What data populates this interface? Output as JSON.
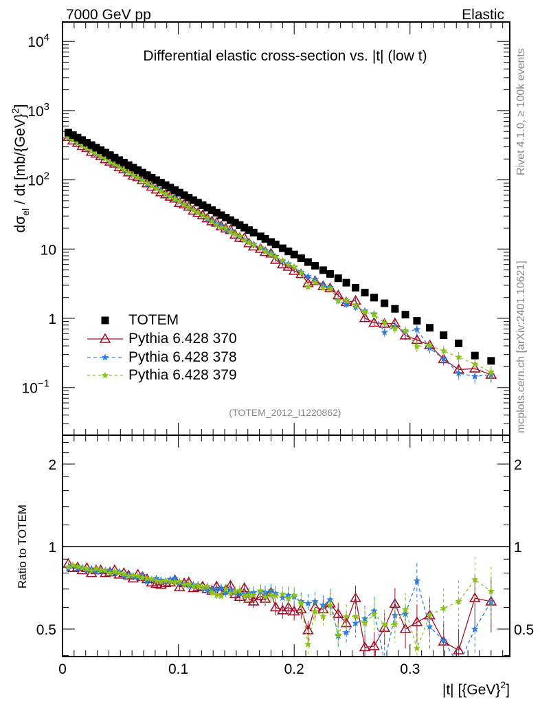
{
  "header": {
    "left": "7000 GeV pp",
    "right": "Elastic"
  },
  "side_texts": {
    "rivet": "Rivet 4.1.0, ≥ 100k events",
    "mcplots": "mcplots.cern.ch [arXiv:2401.10621]"
  },
  "analysis_tag": "(TOTEM_2012_I1220862)",
  "chart_data": [
    {
      "type": "scatter",
      "title": "Differential elastic cross-section vs. |t| (low t)",
      "ylabel": {
        "main": "dσ",
        "sub": "el",
        "mid": " / dt [mb/{GeV}",
        "sup": "2",
        "end": "]"
      },
      "xlabel": {
        "main": "|t| [{GeV}",
        "sup": "2",
        "end": "]"
      },
      "yscale": "log",
      "ylim": [
        0.0206,
        19000
      ],
      "xlim": [
        0,
        0.386
      ],
      "yticks": [
        {
          "v": 10000,
          "base": "10",
          "exp": "4"
        },
        {
          "v": 1000,
          "base": "10",
          "exp": "3"
        },
        {
          "v": 100,
          "base": "10",
          "exp": "2"
        },
        {
          "v": 10,
          "base": "10",
          "exp": ""
        },
        {
          "v": 1,
          "base": "1",
          "exp": ""
        },
        {
          "v": 0.1,
          "base": "10",
          "exp": "−1"
        }
      ],
      "xticks": [
        "0",
        "0.1",
        "0.2",
        "0.3"
      ],
      "x": [
        0.005,
        0.009,
        0.013,
        0.017,
        0.021,
        0.025,
        0.029,
        0.033,
        0.037,
        0.041,
        0.045,
        0.049,
        0.053,
        0.057,
        0.061,
        0.065,
        0.069,
        0.073,
        0.077,
        0.081,
        0.085,
        0.089,
        0.093,
        0.097,
        0.101,
        0.105,
        0.109,
        0.113,
        0.117,
        0.121,
        0.125,
        0.129,
        0.133,
        0.137,
        0.141,
        0.145,
        0.149,
        0.153,
        0.157,
        0.161,
        0.165,
        0.171,
        0.175,
        0.18,
        0.184,
        0.19,
        0.195,
        0.2,
        0.206,
        0.212,
        0.218,
        0.225,
        0.231,
        0.238,
        0.245,
        0.253,
        0.261,
        0.269,
        0.278,
        0.287,
        0.296,
        0.306,
        0.317,
        0.329,
        0.342,
        0.356,
        0.37
      ],
      "totem": [
        481,
        442.6,
        407.3,
        374.8,
        344.9,
        317.4,
        292.1,
        268.8,
        247.3,
        227.6,
        209.4,
        192.7,
        177.3,
        163.2,
        150.2,
        138.2,
        127.1,
        117.0,
        107.7,
        99.1,
        91.2,
        83.9,
        77.2,
        71.0,
        65.4,
        60.1,
        55.3,
        50.9,
        46.9,
        43.1,
        39.7,
        36.5,
        33.6,
        30.9,
        28.5,
        26.2,
        24.1,
        22.2,
        20.4,
        18.8,
        17.3,
        15.26,
        14.04,
        12.65,
        11.65,
        10.28,
        9.26,
        8.35,
        7.37,
        6.5,
        5.74,
        4.96,
        4.38,
        3.79,
        3.27,
        2.77,
        2.35,
        1.99,
        1.65,
        1.37,
        1.13,
        0.92,
        0.73,
        0.57,
        0.435,
        0.29,
        0.243
      ],
      "legend": {
        "placement": "middle-left",
        "entries": [
          "TOTEM",
          "Pythia 6.428 370",
          "Pythia 6.428 378",
          "Pythia 6.428 379"
        ]
      },
      "colors": {
        "totem": "#000000",
        "p370": "#a0102a",
        "p378": "#2a7de1",
        "p379": "#8cc31a"
      }
    },
    {
      "type": "scatter",
      "ylabel": "Ratio to TOTEM",
      "yscale": "log",
      "ylim": [
        0.397,
        2.55
      ],
      "yticks": [
        "2",
        "1",
        "0.5"
      ],
      "series": [
        {
          "name": "Pythia 6.428 370",
          "ratio": [
            0.865,
            0.835,
            0.84,
            0.82,
            0.835,
            0.8,
            0.82,
            0.82,
            0.8,
            0.805,
            0.82,
            0.79,
            0.8,
            0.785,
            0.765,
            0.79,
            0.775,
            0.76,
            0.74,
            0.73,
            0.725,
            0.735,
            0.74,
            0.755,
            0.71,
            0.735,
            0.74,
            0.705,
            0.71,
            0.715,
            0.7,
            0.69,
            0.715,
            0.69,
            0.695,
            0.72,
            0.67,
            0.655,
            0.705,
            0.645,
            0.63,
            0.66,
            0.645,
            0.68,
            0.6,
            0.585,
            0.6,
            0.58,
            0.59,
            0.495,
            0.6,
            0.59,
            0.62,
            0.567,
            0.525,
            0.648,
            0.429,
            0.433,
            0.505,
            0.618,
            0.5,
            0.53,
            0.561,
            0.45,
            0.418,
            0.648,
            0.63
          ]
        },
        {
          "name": "Pythia 6.428 378",
          "ratio": [
            0.83,
            0.85,
            0.83,
            0.84,
            0.82,
            0.83,
            0.81,
            0.81,
            0.82,
            0.815,
            0.8,
            0.81,
            0.78,
            0.79,
            0.775,
            0.77,
            0.785,
            0.745,
            0.755,
            0.765,
            0.755,
            0.745,
            0.76,
            0.765,
            0.735,
            0.73,
            0.72,
            0.725,
            0.725,
            0.705,
            0.69,
            0.7,
            0.695,
            0.705,
            0.68,
            0.695,
            0.68,
            0.675,
            0.67,
            0.675,
            0.68,
            0.685,
            0.68,
            0.69,
            0.675,
            0.65,
            0.665,
            0.655,
            0.63,
            0.62,
            0.63,
            0.61,
            0.64,
            0.472,
            0.486,
            0.525,
            0.545,
            0.583,
            0.38,
            0.561,
            0.567,
            0.75,
            0.51,
            0.454,
            0.37,
            0.5,
            0.63
          ]
        },
        {
          "name": "Pythia 6.428 379",
          "ratio": [
            0.84,
            0.855,
            0.845,
            0.835,
            0.83,
            0.815,
            0.83,
            0.82,
            0.815,
            0.8,
            0.81,
            0.8,
            0.795,
            0.78,
            0.785,
            0.78,
            0.77,
            0.765,
            0.76,
            0.75,
            0.745,
            0.75,
            0.745,
            0.74,
            0.745,
            0.725,
            0.73,
            0.715,
            0.72,
            0.71,
            0.715,
            0.68,
            0.665,
            0.66,
            0.7,
            0.675,
            0.685,
            0.69,
            0.66,
            0.665,
            0.665,
            0.69,
            0.655,
            0.665,
            0.66,
            0.67,
            0.645,
            0.665,
            0.62,
            0.44,
            0.58,
            0.556,
            0.612,
            0.476,
            0.556,
            0.556,
            0.525,
            0.567,
            0.52,
            0.52,
            0.589,
            0.425,
            0.561,
            0.595,
            0.63,
            0.757,
            0.687
          ]
        }
      ]
    }
  ]
}
